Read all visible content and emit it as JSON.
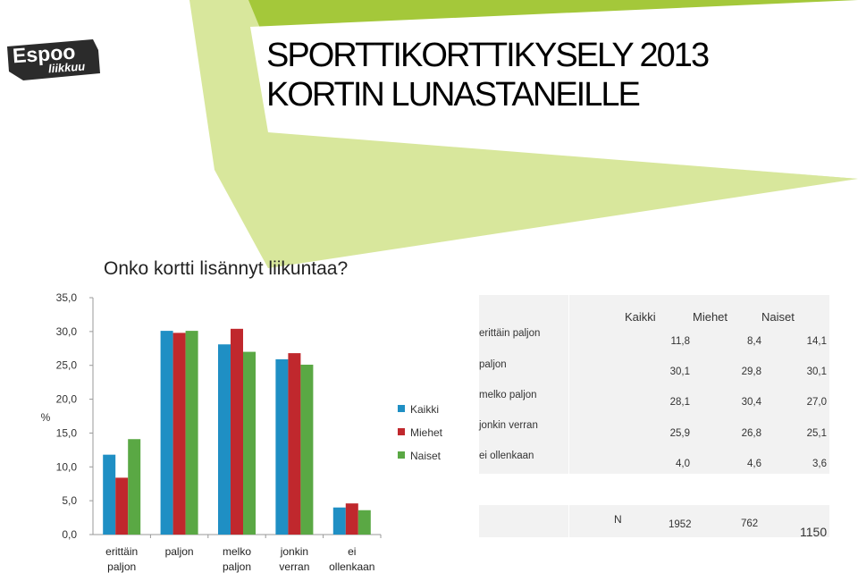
{
  "logo": {
    "line1": "Espoo",
    "line2": "liikkuu"
  },
  "title": {
    "line1": "SPORTTIKORTTIKYSELY 2013",
    "line2": "KORTIN LUNASTANEILLE"
  },
  "chart_data": {
    "type": "bar",
    "title": "Onko kortti lisännyt liikuntaa?",
    "ylabel": "%",
    "ylim": [
      0,
      35
    ],
    "yticks": [
      "0,0",
      "5,0",
      "10,0",
      "15,0",
      "20,0",
      "25,0",
      "30,0",
      "35,0"
    ],
    "categories": [
      [
        "erittäin",
        "paljon"
      ],
      [
        "paljon"
      ],
      [
        "melko",
        "paljon"
      ],
      [
        "jonkin",
        "verran"
      ],
      [
        "ei",
        "ollenkaan"
      ]
    ],
    "series": [
      {
        "name": "Kaikki",
        "color": "#1f8fc4",
        "values": [
          11.8,
          30.1,
          28.1,
          25.9,
          4.0
        ]
      },
      {
        "name": "Miehet",
        "color": "#c0282d",
        "values": [
          8.4,
          29.8,
          30.4,
          26.8,
          4.6
        ]
      },
      {
        "name": "Naiset",
        "color": "#5aa844",
        "values": [
          14.1,
          30.1,
          27.0,
          25.1,
          3.6
        ]
      }
    ],
    "legend": "right"
  },
  "table": {
    "headers": [
      "Kaikki",
      "Miehet",
      "Naiset"
    ],
    "rows": [
      {
        "label": "erittäin paljon",
        "values": [
          "11,8",
          "8,4",
          "14,1"
        ]
      },
      {
        "label": "paljon",
        "values": [
          "30,1",
          "29,8",
          "30,1"
        ]
      },
      {
        "label": "melko paljon",
        "values": [
          "28,1",
          "30,4",
          "27,0"
        ]
      },
      {
        "label": "jonkin verran",
        "values": [
          "25,9",
          "26,8",
          "25,1"
        ]
      },
      {
        "label": "ei ollenkaan",
        "values": [
          "4,0",
          "4,6",
          "3,6"
        ]
      }
    ],
    "n_label": "N",
    "n_values": [
      "1952",
      "762",
      "1150"
    ]
  },
  "colors": {
    "green_light": "#d6e69a",
    "green_dark": "#a6c93a",
    "logo_bg": "#2b2b2b",
    "table_bg": "#f2f2f2"
  }
}
